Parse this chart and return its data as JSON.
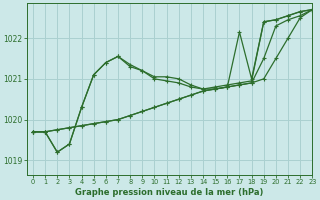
{
  "title": "Graphe pression niveau de la mer (hPa)",
  "bg_color": "#cce8e8",
  "grid_color": "#aad0d0",
  "line_color": "#2d6e2d",
  "xlim": [
    -0.5,
    23
  ],
  "ylim": [
    1018.65,
    1022.85
  ],
  "yticks": [
    1019,
    1020,
    1021,
    1022
  ],
  "xticks": [
    0,
    1,
    2,
    3,
    4,
    5,
    6,
    7,
    8,
    9,
    10,
    11,
    12,
    13,
    14,
    15,
    16,
    17,
    18,
    19,
    20,
    21,
    22,
    23
  ],
  "series": [
    [
      1019.7,
      1019.7,
      1019.75,
      1019.8,
      1019.85,
      1019.9,
      1019.95,
      1020.0,
      1020.1,
      1020.2,
      1020.3,
      1020.4,
      1020.5,
      1020.6,
      1020.7,
      1020.75,
      1020.8,
      1020.85,
      1020.9,
      1021.0,
      1021.5,
      1022.0,
      1022.5,
      1022.7
    ],
    [
      1019.7,
      1019.7,
      1019.2,
      1019.4,
      1020.3,
      1021.1,
      1021.4,
      1021.55,
      1021.3,
      1021.2,
      1021.05,
      1021.05,
      1021.0,
      1020.85,
      1020.75,
      1020.75,
      1020.8,
      1022.15,
      1021.0,
      1022.4,
      1022.45,
      1022.55,
      1022.65,
      1022.7
    ],
    [
      1019.7,
      1019.7,
      1019.2,
      1019.4,
      1020.3,
      1021.1,
      1021.4,
      1021.55,
      1021.35,
      1021.2,
      1021.0,
      1020.95,
      1020.9,
      1020.8,
      1020.75,
      1020.8,
      1020.85,
      1020.9,
      1020.95,
      1022.4,
      1022.45,
      1022.55,
      1022.65,
      1022.7
    ],
    [
      1019.7,
      1019.7,
      1019.75,
      1019.8,
      1019.85,
      1019.9,
      1019.95,
      1020.0,
      1020.1,
      1020.2,
      1020.3,
      1020.4,
      1020.5,
      1020.6,
      1020.7,
      1020.75,
      1020.8,
      1020.85,
      1020.9,
      1021.5,
      1022.3,
      1022.45,
      1022.55,
      1022.7
    ]
  ]
}
